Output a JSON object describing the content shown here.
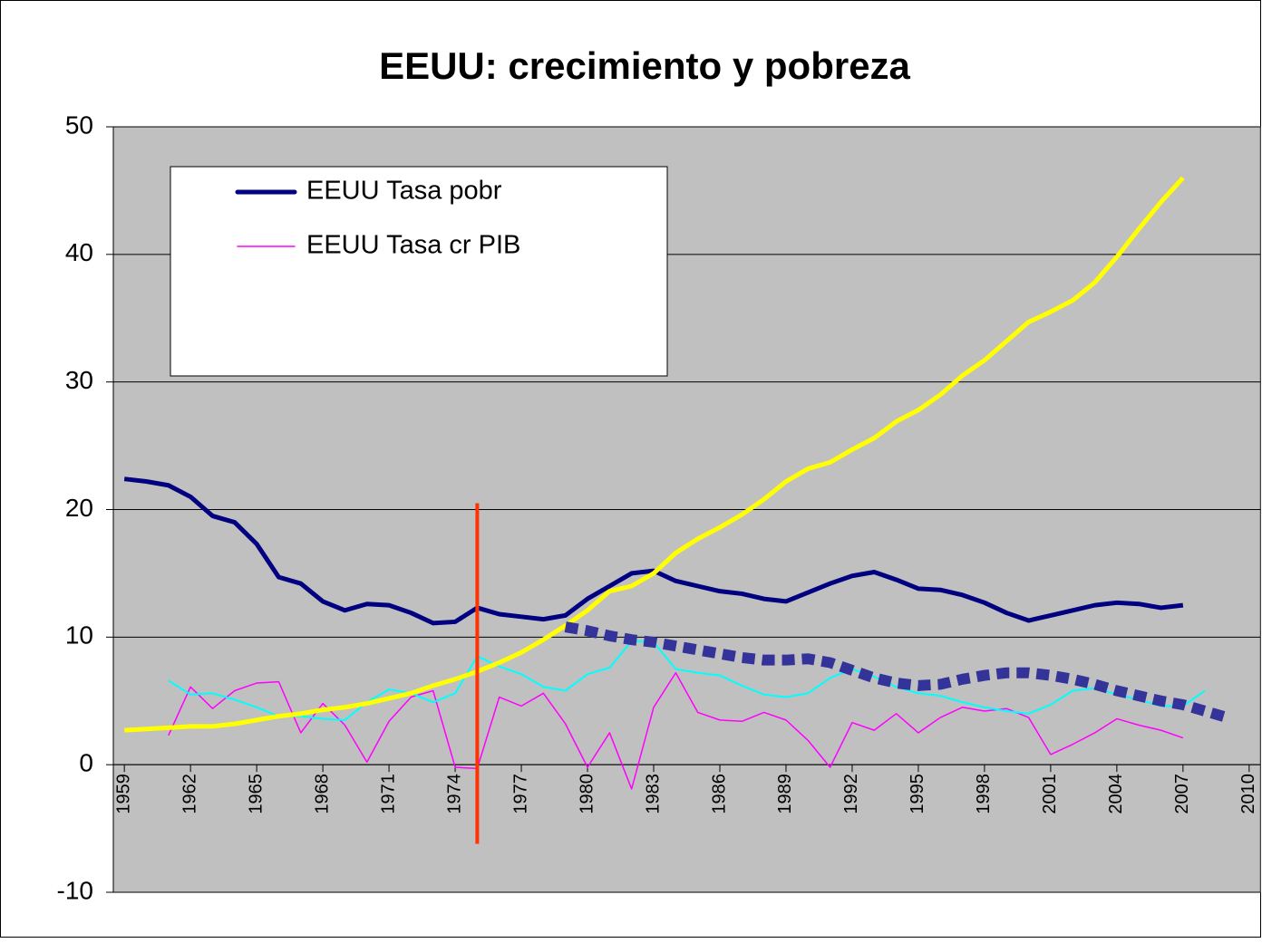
{
  "chart_data": {
    "type": "line",
    "title": "EEUU: crecimiento y pobreza",
    "x": [
      1959,
      1960,
      1961,
      1962,
      1963,
      1964,
      1965,
      1966,
      1967,
      1968,
      1969,
      1970,
      1971,
      1972,
      1973,
      1974,
      1975,
      1976,
      1977,
      1978,
      1979,
      1980,
      1981,
      1982,
      1983,
      1984,
      1985,
      1986,
      1987,
      1988,
      1989,
      1990,
      1991,
      1992,
      1993,
      1994,
      1995,
      1996,
      1997,
      1998,
      1999,
      2000,
      2001,
      2002,
      2003,
      2004,
      2005,
      2006,
      2007,
      2008,
      2009,
      2010
    ],
    "xlim": [
      1958.5,
      2010.5
    ],
    "xticks": [
      1959,
      1962,
      1965,
      1968,
      1971,
      1974,
      1977,
      1980,
      1983,
      1986,
      1989,
      1992,
      1995,
      1998,
      2001,
      2004,
      2007,
      2010
    ],
    "ylim": [
      -10,
      50
    ],
    "yticks": [
      -10,
      0,
      10,
      20,
      30,
      40,
      50
    ],
    "grid": true,
    "legend": "upper left",
    "series": [
      {
        "name": "EEUU Tasa pobr",
        "color": "#000080",
        "width": 5,
        "values": [
          22.4,
          22.2,
          21.9,
          21.0,
          19.5,
          19.0,
          17.3,
          14.7,
          14.2,
          12.8,
          12.1,
          12.6,
          12.5,
          11.9,
          11.1,
          11.2,
          12.3,
          11.8,
          11.6,
          11.4,
          11.7,
          13.0,
          14.0,
          15.0,
          15.2,
          14.4,
          14.0,
          13.6,
          13.4,
          13.0,
          12.8,
          13.5,
          14.2,
          14.8,
          15.1,
          14.5,
          13.8,
          13.7,
          13.3,
          12.7,
          11.9,
          11.3,
          11.7,
          12.1,
          12.5,
          12.7,
          12.6,
          12.3,
          12.5,
          null,
          null,
          null
        ]
      },
      {
        "name": "EEUU Tasa cr PIB",
        "color": "#ff00ff",
        "width": 1.5,
        "values": [
          null,
          null,
          2.3,
          6.1,
          4.4,
          5.8,
          6.4,
          6.5,
          2.5,
          4.8,
          3.1,
          0.2,
          3.4,
          5.3,
          5.8,
          -0.2,
          -0.3,
          5.3,
          4.6,
          5.6,
          3.2,
          -0.2,
          2.5,
          -1.9,
          4.5,
          7.2,
          4.1,
          3.5,
          3.4,
          4.1,
          3.5,
          1.9,
          -0.2,
          3.3,
          2.7,
          4.0,
          2.5,
          3.7,
          4.5,
          4.2,
          4.4,
          3.7,
          0.8,
          1.6,
          2.5,
          3.6,
          3.1,
          2.7,
          2.1,
          null,
          null,
          null
        ]
      },
      {
        "color": "#00ffff",
        "width": 2,
        "values": [
          null,
          null,
          6.6,
          5.5,
          5.6,
          5.1,
          4.5,
          3.8,
          3.8,
          3.6,
          3.5,
          4.9,
          5.9,
          5.6,
          4.9,
          5.6,
          8.5,
          7.7,
          7.1,
          6.1,
          5.8,
          7.1,
          7.6,
          9.7,
          9.6,
          7.5,
          7.2,
          7.0,
          6.2,
          5.5,
          5.3,
          5.6,
          6.8,
          7.5,
          6.9,
          6.1,
          5.6,
          5.4,
          4.9,
          4.5,
          4.2,
          4.0,
          4.7,
          5.8,
          6.0,
          5.5,
          5.1,
          4.6,
          4.6,
          5.8,
          null,
          null
        ]
      },
      {
        "color": "#ffff00",
        "width": 5,
        "values": [
          2.7,
          2.8,
          2.9,
          3.0,
          3.0,
          3.2,
          3.5,
          3.8,
          4.0,
          4.3,
          4.5,
          4.8,
          5.2,
          5.6,
          6.2,
          6.7,
          7.3,
          8.0,
          8.8,
          9.8,
          10.9,
          12.1,
          13.6,
          14.0,
          15.0,
          16.6,
          17.7,
          18.6,
          19.6,
          20.8,
          22.2,
          23.2,
          23.7,
          24.7,
          25.6,
          26.9,
          27.8,
          29.0,
          30.5,
          31.7,
          33.2,
          34.7,
          35.5,
          36.4,
          37.8,
          39.8,
          42.0,
          44.1,
          46.0,
          null,
          null,
          null
        ]
      },
      {
        "color": "#333399",
        "width": 12,
        "dash": true,
        "values": [
          null,
          null,
          null,
          null,
          null,
          null,
          null,
          null,
          null,
          null,
          null,
          null,
          null,
          null,
          null,
          null,
          null,
          null,
          null,
          null,
          10.8,
          10.5,
          10.1,
          9.8,
          9.6,
          9.3,
          9.0,
          8.7,
          8.4,
          8.2,
          8.2,
          8.3,
          8.0,
          7.4,
          6.8,
          6.4,
          6.2,
          6.3,
          6.7,
          7.0,
          7.2,
          7.2,
          7.0,
          6.7,
          6.3,
          5.8,
          5.4,
          5.0,
          4.7,
          4.2,
          3.7,
          null
        ]
      }
    ],
    "vline": {
      "x": 1975,
      "y": [
        20.5,
        -6.2
      ],
      "color": "#ff3300"
    }
  }
}
